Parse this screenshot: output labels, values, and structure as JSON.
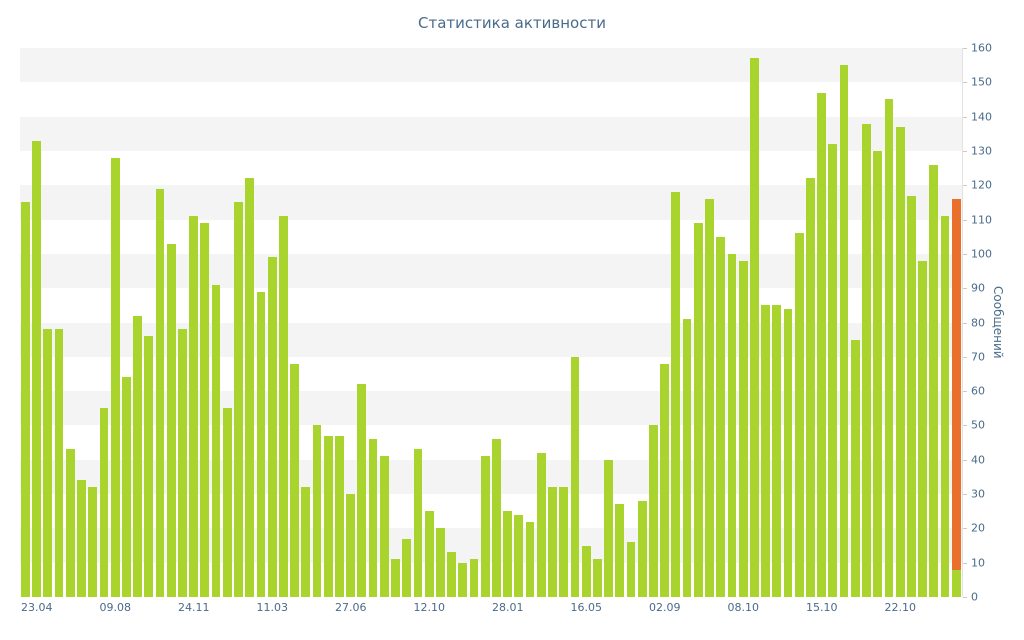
{
  "chart_data": {
    "type": "bar",
    "title": "Статистика активности",
    "ylabel": "Сообщений",
    "ylim": [
      0,
      160
    ],
    "ytick_step": 10,
    "yticks": [
      0,
      10,
      20,
      30,
      40,
      50,
      60,
      70,
      80,
      90,
      100,
      110,
      120,
      130,
      140,
      150,
      160
    ],
    "x_tick_labels": [
      "23.04",
      "09.08",
      "24.11",
      "11.03",
      "27.06",
      "12.10",
      "28.01",
      "16.05",
      "02.09",
      "08.10",
      "15.10",
      "22.10"
    ],
    "x_tick_every": 7,
    "bar_color": "#a9d42e",
    "current_bar_color": "#e8702c",
    "stripe_color": "#f4f4f4",
    "grid": "striped-bands",
    "legend": "none",
    "values": [
      115,
      133,
      78,
      78,
      43,
      34,
      32,
      55,
      128,
      64,
      82,
      76,
      119,
      103,
      78,
      111,
      109,
      91,
      55,
      115,
      122,
      89,
      99,
      111,
      68,
      32,
      50,
      47,
      47,
      30,
      62,
      46,
      41,
      11,
      17,
      43,
      25,
      20,
      13,
      10,
      11,
      41,
      46,
      25,
      24,
      22,
      42,
      32,
      32,
      70,
      15,
      11,
      40,
      27,
      16,
      28,
      50,
      68,
      118,
      81,
      109,
      116,
      105,
      100,
      98,
      157,
      85,
      85,
      84,
      106,
      122,
      147,
      132,
      155,
      75,
      138,
      130,
      145,
      137,
      117,
      98,
      126,
      111,
      116
    ],
    "current_bar_index": 83,
    "current_bar_actual": 8
  }
}
